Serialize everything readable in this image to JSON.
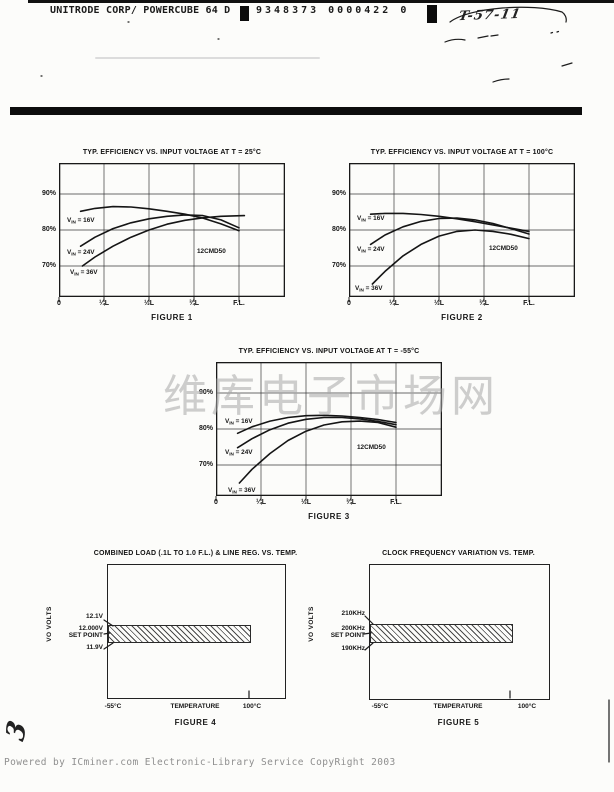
{
  "header": {
    "top_left_text": "UNITRODE CORP/ POWERCUBE 64  D",
    "document_number": "9348373 0000422 0",
    "handwritten_note": "T-57-11"
  },
  "watermark_text": "维库电子市场网",
  "handwritten_page_mark": "3",
  "footer_text": "Powered by ICminer.com Electronic-Library Service CopyRight 2003",
  "chart_data": [
    {
      "type": "line",
      "figure": "FIGURE 1",
      "title": "TYP. EFFICIENCY VS. INPUT VOLTAGE AT T = 25°C",
      "annotation": "12CMD50",
      "annotation_pos": [
        138,
        90
      ],
      "xticks": [
        "0",
        "¼L",
        "½L",
        "¾L",
        "F.L."
      ],
      "yticks": [
        "90%",
        "80%",
        "70%"
      ],
      "ylim": [
        61,
        99
      ],
      "grid": true,
      "legend_position": "labels-at-curve-start",
      "series": [
        {
          "name": "VIN = 16V",
          "label_pos": [
            8,
            59
          ],
          "points": [
            [
              0.12,
              85.2
            ],
            [
              0.2,
              86.0
            ],
            [
              0.3,
              86.5
            ],
            [
              0.4,
              86.4
            ],
            [
              0.5,
              85.9
            ],
            [
              0.6,
              85.2
            ],
            [
              0.7,
              84.4
            ],
            [
              0.8,
              83.3
            ],
            [
              0.9,
              81.7
            ],
            [
              1.0,
              79.8
            ]
          ]
        },
        {
          "name": "VIN = 24V",
          "label_pos": [
            8,
            91
          ],
          "points": [
            [
              0.12,
              75.5
            ],
            [
              0.2,
              78.0
            ],
            [
              0.3,
              80.4
            ],
            [
              0.4,
              82.0
            ],
            [
              0.5,
              83.1
            ],
            [
              0.6,
              83.8
            ],
            [
              0.7,
              84.2
            ],
            [
              0.8,
              84.0
            ],
            [
              0.9,
              82.8
            ],
            [
              1.0,
              80.6
            ]
          ]
        },
        {
          "name": "VIN = 36V",
          "label_pos": [
            11,
            111
          ],
          "points": [
            [
              0.13,
              70.0
            ],
            [
              0.2,
              72.5
            ],
            [
              0.3,
              75.5
            ],
            [
              0.4,
              78.0
            ],
            [
              0.5,
              80.0
            ],
            [
              0.6,
              81.6
            ],
            [
              0.7,
              82.7
            ],
            [
              0.8,
              83.4
            ],
            [
              0.9,
              83.8
            ],
            [
              1.03,
              84.0
            ]
          ]
        }
      ]
    },
    {
      "type": "line",
      "figure": "FIGURE 2",
      "title": "TYP. EFFICIENCY VS. INPUT VOLTAGE AT T = 100°C",
      "annotation": "12CMD50",
      "annotation_pos": [
        140,
        87
      ],
      "xticks": [
        "0",
        "¼L",
        "½L",
        "¾L",
        "F.L."
      ],
      "yticks": [
        "90%",
        "80%",
        "70%"
      ],
      "ylim": [
        61,
        99
      ],
      "grid": true,
      "legend_position": "labels-at-curve-start",
      "series": [
        {
          "name": "VIN = 16V",
          "label_pos": [
            8,
            57
          ],
          "points": [
            [
              0.12,
              84.4
            ],
            [
              0.2,
              84.6
            ],
            [
              0.3,
              84.6
            ],
            [
              0.4,
              84.3
            ],
            [
              0.5,
              83.8
            ],
            [
              0.6,
              83.1
            ],
            [
              0.7,
              82.3
            ],
            [
              0.8,
              81.4
            ],
            [
              0.9,
              80.5
            ],
            [
              1.0,
              79.6
            ]
          ]
        },
        {
          "name": "VIN = 24V",
          "label_pos": [
            8,
            88
          ],
          "points": [
            [
              0.12,
              76.0
            ],
            [
              0.2,
              78.6
            ],
            [
              0.3,
              80.9
            ],
            [
              0.4,
              82.4
            ],
            [
              0.5,
              83.2
            ],
            [
              0.6,
              83.3
            ],
            [
              0.7,
              82.8
            ],
            [
              0.8,
              81.8
            ],
            [
              0.9,
              80.4
            ],
            [
              1.0,
              78.9
            ]
          ]
        },
        {
          "name": "VIN = 36V",
          "label_pos": [
            6,
            127
          ],
          "points": [
            [
              0.13,
              65.0
            ],
            [
              0.2,
              68.5
            ],
            [
              0.3,
              72.8
            ],
            [
              0.4,
              76.0
            ],
            [
              0.5,
              78.3
            ],
            [
              0.6,
              79.6
            ],
            [
              0.7,
              80.0
            ],
            [
              0.8,
              79.6
            ],
            [
              0.9,
              78.8
            ],
            [
              1.0,
              77.6
            ]
          ]
        }
      ]
    },
    {
      "type": "line",
      "figure": "FIGURE 3",
      "title": "TYP. EFFICIENCY VS. INPUT VOLTAGE AT T = -55°C",
      "annotation": "12CMD50",
      "annotation_pos": [
        141,
        87
      ],
      "xticks": [
        "0",
        "¼L",
        "½L",
        "¾L",
        "F.L."
      ],
      "yticks": [
        "90%",
        "80%",
        "70%"
      ],
      "ylim": [
        61,
        99
      ],
      "grid": true,
      "legend_position": "labels-at-curve-start",
      "series": [
        {
          "name": "VIN = 16V",
          "label_pos": [
            9,
            61
          ],
          "points": [
            [
              0.12,
              78.8
            ],
            [
              0.2,
              80.6
            ],
            [
              0.3,
              82.2
            ],
            [
              0.4,
              83.2
            ],
            [
              0.5,
              83.7
            ],
            [
              0.6,
              83.8
            ],
            [
              0.7,
              83.6
            ],
            [
              0.8,
              83.2
            ],
            [
              0.9,
              82.6
            ],
            [
              1.0,
              81.8
            ]
          ]
        },
        {
          "name": "VIN = 24V",
          "label_pos": [
            9,
            92
          ],
          "points": [
            [
              0.12,
              74.8
            ],
            [
              0.2,
              77.3
            ],
            [
              0.3,
              79.8
            ],
            [
              0.4,
              81.6
            ],
            [
              0.5,
              82.7
            ],
            [
              0.6,
              83.2
            ],
            [
              0.7,
              83.2
            ],
            [
              0.8,
              82.8
            ],
            [
              0.9,
              82.1
            ],
            [
              1.0,
              81.2
            ]
          ]
        },
        {
          "name": "VIN = 36V",
          "label_pos": [
            12,
            130
          ],
          "points": [
            [
              0.13,
              65.0
            ],
            [
              0.2,
              68.8
            ],
            [
              0.3,
              73.2
            ],
            [
              0.4,
              76.8
            ],
            [
              0.5,
              79.4
            ],
            [
              0.6,
              81.1
            ],
            [
              0.7,
              82.0
            ],
            [
              0.8,
              82.2
            ],
            [
              0.9,
              81.8
            ],
            [
              1.0,
              80.5
            ]
          ]
        }
      ]
    },
    {
      "type": "band",
      "figure": "FIGURE 4",
      "title": "COMBINED LOAD (.1L TO 1.0 F.L.) & LINE REG. VS. TEMP.",
      "ylabel": "VO VOLTS",
      "yticks": {
        "upper": "12.1V",
        "set_line1": "12.000V",
        "set_line2": "SET POINT",
        "lower": "11.9V"
      },
      "xticks": [
        "-55°C",
        "TEMPERATURE",
        "100°C"
      ],
      "grid": false,
      "band": {
        "temp_range": [
          "-55°C",
          "100°C"
        ],
        "value_range_shown": [
          "11.9V",
          "12.1V"
        ],
        "pattern": "diagonal-hatch"
      }
    },
    {
      "type": "band",
      "figure": "FIGURE 5",
      "title": "CLOCK FREQUENCY VARIATION VS. TEMP.",
      "ylabel": "VO VOLTS",
      "yticks": {
        "upper": "210KHz",
        "set_line1": "200KHz",
        "set_line2": "SET POINT",
        "lower": "190KHz"
      },
      "xticks": [
        "-55°C",
        "TEMPERATURE",
        "100°C"
      ],
      "grid": false,
      "band": {
        "temp_range": [
          "-55°C",
          "100°C"
        ],
        "value_range_shown": [
          "190KHz",
          "210KHz"
        ],
        "pattern": "diagonal-hatch"
      }
    }
  ]
}
